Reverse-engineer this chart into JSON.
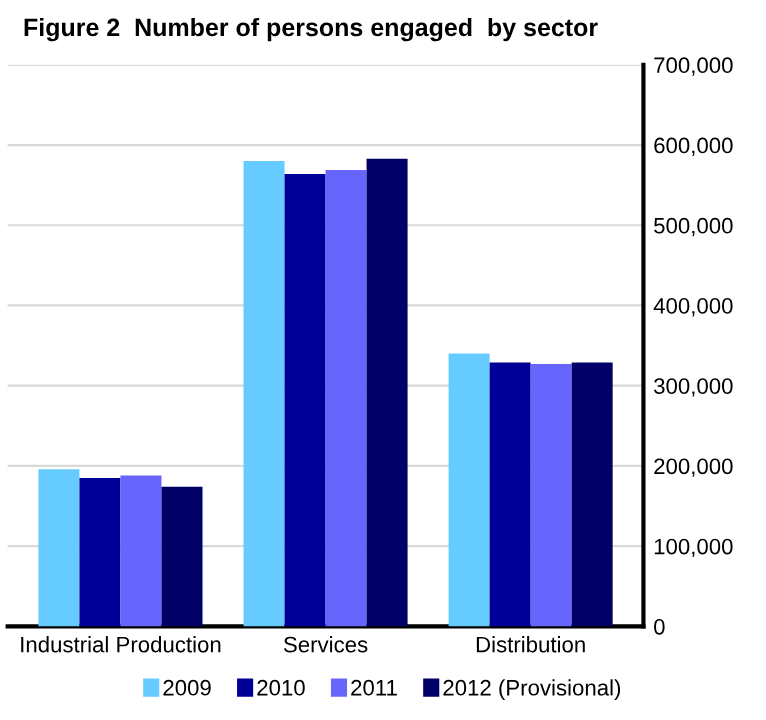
{
  "chart_data": {
    "type": "bar",
    "title": "Figure 2  Number of persons engaged  by sector",
    "categories": [
      "Industrial Production",
      "Services",
      "Distribution"
    ],
    "series": [
      {
        "name": "2009",
        "color": "#66ccff",
        "values": [
          196000,
          580000,
          340000
        ]
      },
      {
        "name": "2010",
        "color": "#000099",
        "values": [
          185000,
          564000,
          329000
        ]
      },
      {
        "name": "2011",
        "color": "#6666ff",
        "values": [
          188000,
          569000,
          327000
        ]
      },
      {
        "name": "2012 (Provisional)",
        "color": "#000066",
        "values": [
          174000,
          583000,
          329000
        ]
      }
    ],
    "ylim": [
      0,
      700000
    ],
    "yticks": [
      {
        "value": 0,
        "label": "0"
      },
      {
        "value": 100000,
        "label": "100,000"
      },
      {
        "value": 200000,
        "label": "200,000"
      },
      {
        "value": 300000,
        "label": "300,000"
      },
      {
        "value": 400000,
        "label": "400,000"
      },
      {
        "value": 500000,
        "label": "500,000"
      },
      {
        "value": 600000,
        "label": "600,000"
      },
      {
        "value": 700000,
        "label": "700,000"
      }
    ],
    "grid": "y",
    "legend": "bottom"
  }
}
